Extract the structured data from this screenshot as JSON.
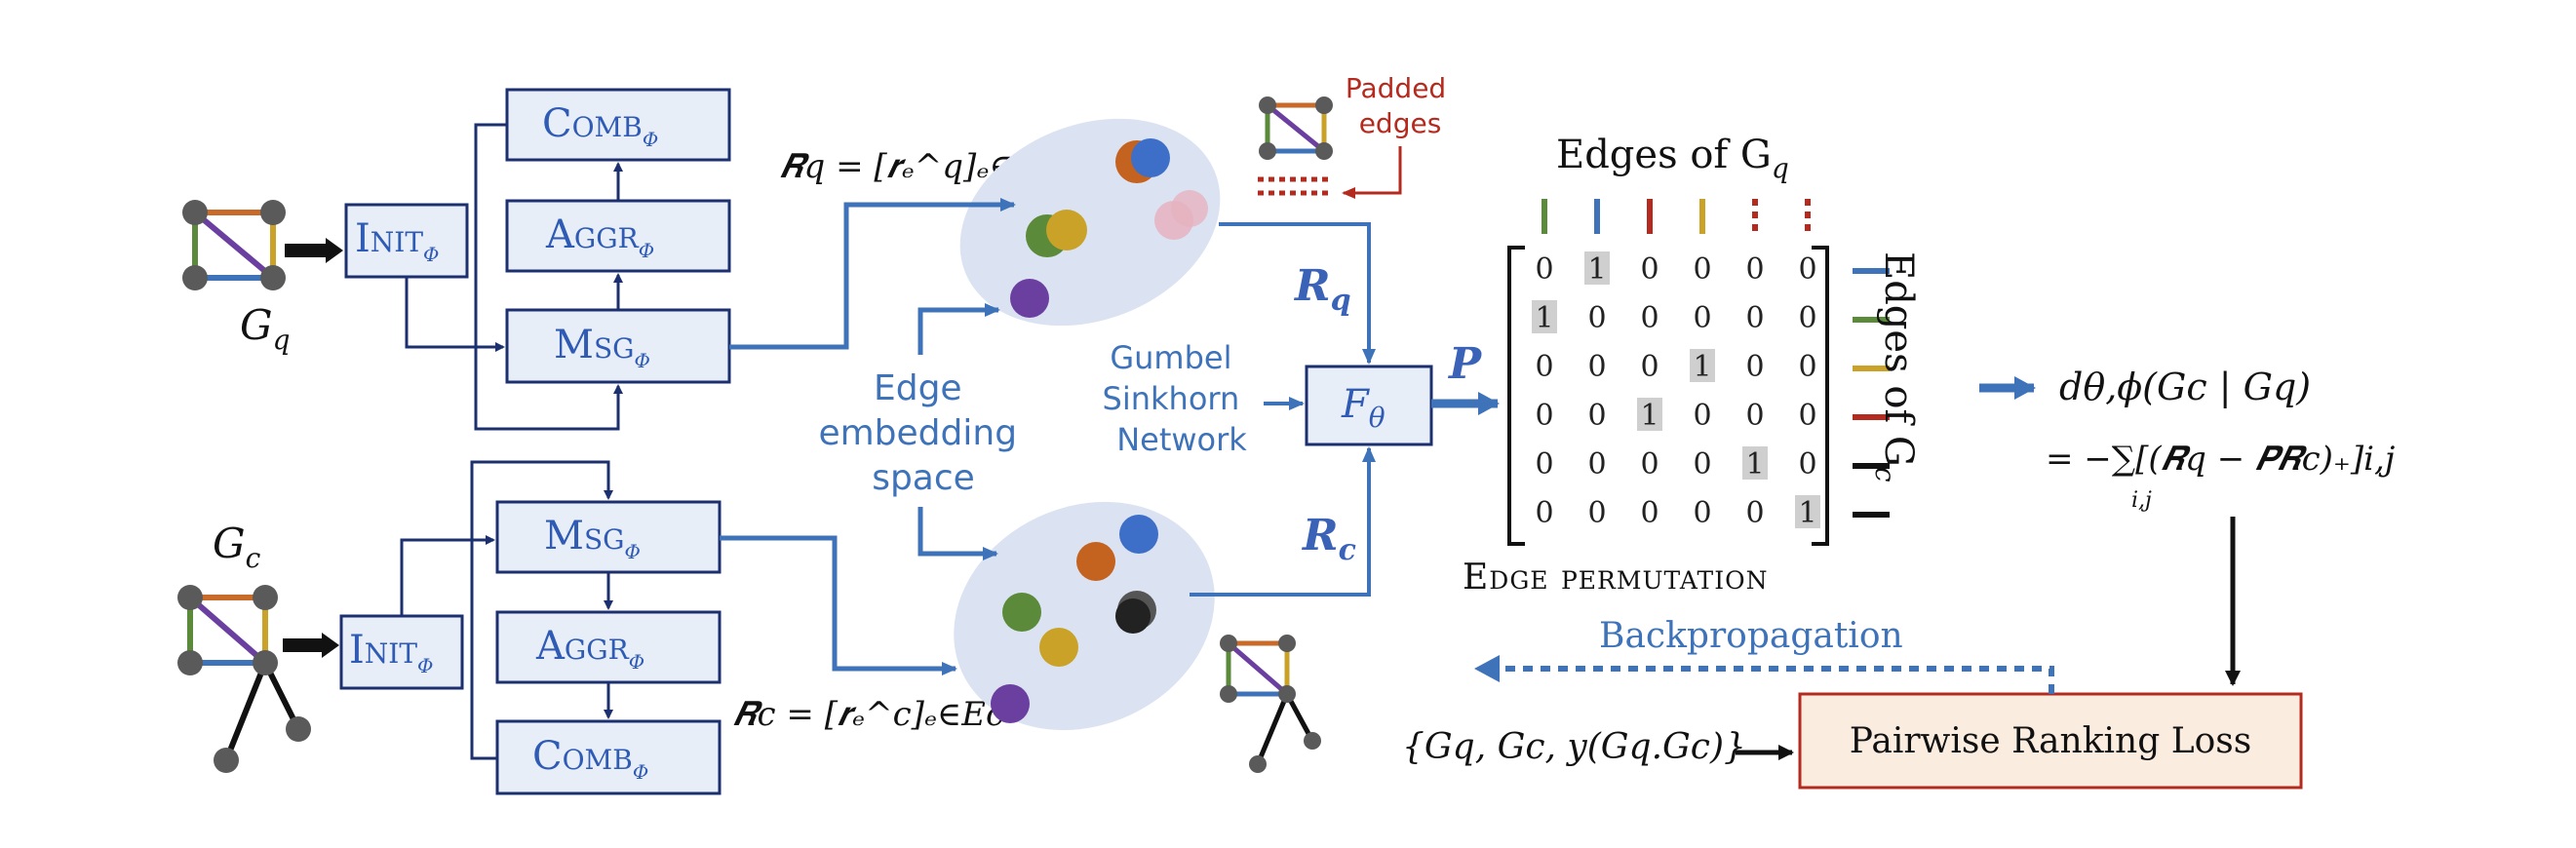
{
  "encoder": {
    "init_label": "Init",
    "msg_label": "Msg",
    "aggr_label": "Aggr",
    "comb_label": "Comb",
    "phi": "ϕ"
  },
  "graphs": {
    "query_label": "G",
    "query_sub": "q",
    "corpus_label": "G",
    "corpus_sub": "c"
  },
  "embeddings": {
    "rq_formula": "𝑹q = [𝒓ₑ^q]ₑ∈Eq",
    "rc_formula": "𝑹c = [𝒓ₑ^c]ₑ∈Ec",
    "space_label_lines": [
      "Edge",
      "embedding",
      "space"
    ],
    "rq_label": "R",
    "rq_sub": "q",
    "rc_label": "R",
    "rc_sub": "c"
  },
  "padded": {
    "lines": [
      "Padded",
      "edges"
    ]
  },
  "sinkhorn": {
    "lines": [
      "Gumbel",
      "Sinkhorn",
      "Network"
    ],
    "f_label": "F",
    "f_sub": "θ",
    "p_label": "P"
  },
  "matrix": {
    "top_title": "Edges of G",
    "top_title_sub": "q",
    "side_title": "Edges of G",
    "side_title_sub": "c",
    "bottom_title": "Edge permutation",
    "col_colors": [
      "#5a8a3a",
      "#3e73b9",
      "#b52a1e",
      "#c9a227",
      "#b52a1e",
      "#b52a1e"
    ],
    "col_dashed": [
      false,
      false,
      false,
      false,
      true,
      true
    ],
    "row_colors": [
      "#3e73b9",
      "#5a8a3a",
      "#c9a227",
      "#b52a1e",
      "#111111",
      "#111111"
    ],
    "rows": [
      [
        "0",
        "1",
        "0",
        "0",
        "0",
        "0"
      ],
      [
        "1",
        "0",
        "0",
        "0",
        "0",
        "0"
      ],
      [
        "0",
        "0",
        "0",
        "1",
        "0",
        "0"
      ],
      [
        "0",
        "0",
        "1",
        "0",
        "0",
        "0"
      ],
      [
        "0",
        "0",
        "0",
        "0",
        "1",
        "0"
      ],
      [
        "0",
        "0",
        "0",
        "0",
        "0",
        "1"
      ]
    ]
  },
  "distance": {
    "line1": "dθ,ϕ(Gc | Gq)",
    "line2": "= −∑",
    "sum_sub": "i,j",
    "line2_rest": "[(𝑹q − 𝑷𝑹c)₊]i,j"
  },
  "loss": {
    "box_label": "Pairwise Ranking Loss",
    "input_label": "{Gq, Gc, y(Gq.Gc)}",
    "backprop_label": "Backpropagation"
  },
  "colors": {
    "box_stroke": "#1c2f6e",
    "box_fill": "#e8eef8",
    "accent_blue": "#3e73b9",
    "ellipse_fill": "#dbe3f2",
    "loss_stroke": "#b52a1e",
    "loss_fill": "#fbece0"
  }
}
